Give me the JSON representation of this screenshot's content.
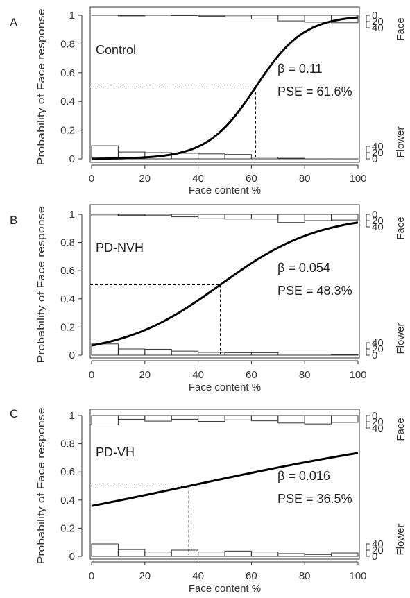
{
  "chart_data": [
    {
      "type": "line",
      "panel": "A",
      "group_label": "Control",
      "beta_text": "β = 0.11",
      "pse_text": "PSE = 61.6%",
      "beta": 0.11,
      "pse": 61.6,
      "xlabel": "Face content %",
      "ylabel": "Probability of Face response",
      "right_top_label": "Face",
      "right_bottom_label": "Flower",
      "xlim": [
        0,
        100
      ],
      "ylim": [
        0,
        1
      ],
      "x_ticks": [
        "0",
        "20",
        "40",
        "60",
        "80",
        "100"
      ],
      "y_ticks": [
        "0",
        "0.2",
        "0.4",
        "0.6",
        "0.8",
        "1"
      ],
      "count_ticks_top": [
        "0",
        "20",
        "40"
      ],
      "count_ticks_bottom": [
        "40",
        "20",
        "0"
      ],
      "bins": [
        0,
        10,
        20,
        30,
        40,
        50,
        60,
        70,
        80,
        90,
        100
      ],
      "face_counts": [
        0,
        2,
        0,
        1,
        3,
        5,
        12,
        18,
        22,
        24
      ],
      "flower_counts": [
        42,
        22,
        20,
        18,
        16,
        14,
        5,
        2,
        0,
        0
      ]
    },
    {
      "type": "line",
      "panel": "B",
      "group_label": "PD-NVH",
      "beta_text": "β = 0.054",
      "pse_text": "PSE = 48.3%",
      "beta": 0.054,
      "pse": 48.3,
      "xlabel": "Face content %",
      "ylabel": "Probability of Face response",
      "right_top_label": "Face",
      "right_bottom_label": "Flower",
      "xlim": [
        0,
        100
      ],
      "ylim": [
        0,
        1
      ],
      "x_ticks": [
        "0",
        "20",
        "40",
        "60",
        "80",
        "100"
      ],
      "y_ticks": [
        "0",
        "0.2",
        "0.4",
        "0.6",
        "0.8",
        "1"
      ],
      "count_ticks_top": [
        "0",
        "20",
        "40"
      ],
      "count_ticks_bottom": [
        "40",
        "20",
        "0"
      ],
      "bins": [
        0,
        10,
        20,
        30,
        40,
        50,
        60,
        70,
        80,
        90,
        100
      ],
      "face_counts": [
        5,
        3,
        4,
        8,
        14,
        15,
        15,
        26,
        20,
        18
      ],
      "flower_counts": [
        36,
        20,
        19,
        13,
        9,
        8,
        8,
        0,
        0,
        2
      ]
    },
    {
      "type": "line",
      "panel": "C",
      "group_label": "PD-VH",
      "beta_text": "β = 0.016",
      "pse_text": "PSE = 36.5%",
      "beta": 0.016,
      "pse": 36.5,
      "xlabel": "Face content %",
      "ylabel": "Probability of Face response",
      "right_top_label": "Face",
      "right_bottom_label": "Flower",
      "xlim": [
        0,
        100
      ],
      "ylim": [
        0,
        1
      ],
      "x_ticks": [
        "0",
        "20",
        "40",
        "60",
        "80",
        "100"
      ],
      "y_ticks": [
        "0",
        "0.2",
        "0.4",
        "0.6",
        "0.8",
        "1"
      ],
      "count_ticks_top": [
        "0",
        "20",
        "40"
      ],
      "count_ticks_bottom": [
        "40",
        "20",
        "0"
      ],
      "bins": [
        0,
        10,
        20,
        30,
        40,
        50,
        60,
        70,
        80,
        90,
        100
      ],
      "face_counts": [
        30,
        12,
        18,
        12,
        19,
        14,
        17,
        24,
        27,
        22
      ],
      "flower_counts": [
        40,
        22,
        14,
        20,
        14,
        17,
        14,
        9,
        6,
        11
      ]
    }
  ]
}
